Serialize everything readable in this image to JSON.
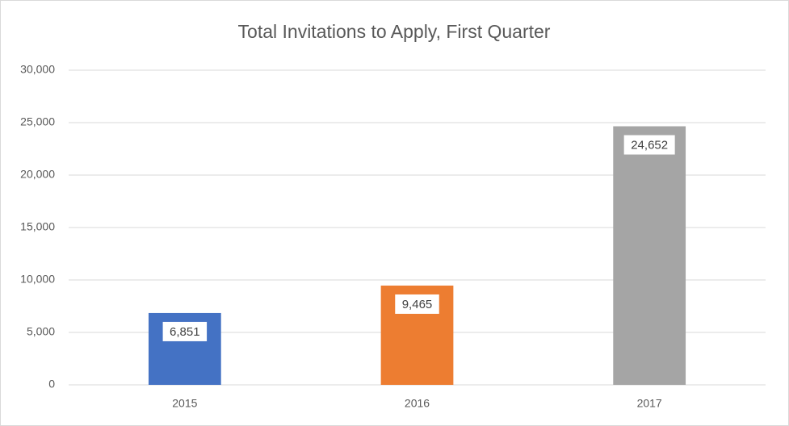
{
  "chart_data": {
    "type": "bar",
    "title": "Total Invitations to Apply, First Quarter",
    "categories": [
      "2015",
      "2016",
      "2017"
    ],
    "values": [
      6851,
      9465,
      24652
    ],
    "value_labels": [
      "6,851",
      "9,465",
      "24,652"
    ],
    "colors": [
      "#4472c4",
      "#ed7d31",
      "#a5a5a5"
    ],
    "ylim": [
      0,
      30000
    ],
    "yticks": [
      0,
      {
        "value": 5000,
        "label": "5,000"
      },
      {
        "value": 10000,
        "label": "10,000"
      },
      {
        "value": 15000,
        "label": "15,000"
      },
      {
        "value": 20000,
        "label": "20,000"
      },
      {
        "value": 25000,
        "label": "25,000"
      },
      {
        "value": 30000,
        "label": "30,000"
      }
    ],
    "grid": true
  }
}
